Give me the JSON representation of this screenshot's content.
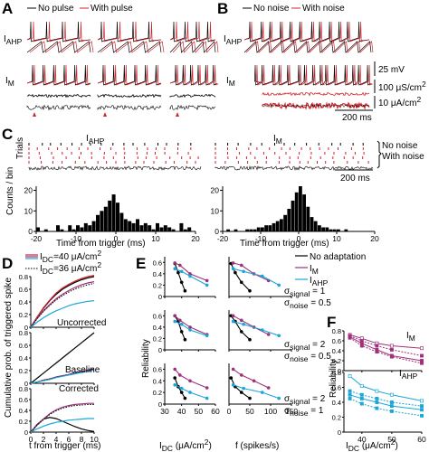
{
  "colors": {
    "red": "#d2232a",
    "magenta": "#a0307a",
    "cyan": "#1ba6d8",
    "blue": "#3a3aa8",
    "black": "#000000"
  },
  "panelA": {
    "label": "A",
    "legend_black": "No pulse",
    "legend_red": "With pulse",
    "row1_label": "I",
    "row1_sub": "AHP",
    "row2_label": "I",
    "row2_sub": "M"
  },
  "panelB": {
    "label": "B",
    "legend_black": "No noise",
    "legend_red": "With noise",
    "row1_label": "I",
    "row1_sub": "AHP",
    "row2_label": "I",
    "row2_sub": "M",
    "scale_mv": "25 mV",
    "scale_cond": "100 μS/cm",
    "scale_cond_sup": "2",
    "scale_cur": "10 μA/cm",
    "scale_cur_sup": "2",
    "scale_time": "200 ms"
  },
  "panelC": {
    "label": "C",
    "trials": "Trials",
    "counts": "Counts / bin",
    "left_title": "I",
    "left_sub": "AHP",
    "right_title": "I",
    "right_sub": "M",
    "no_noise": "No noise",
    "with_noise": "With noise",
    "scale_time": "200 ms",
    "xlabel": "Time from trigger (ms)",
    "left_xticks": [
      "-20",
      "-10",
      "0",
      "10",
      "20"
    ],
    "right_xticks": [
      "-20",
      "-10",
      "0",
      "10",
      "20"
    ],
    "left_yticks": [
      "0",
      "10",
      "20"
    ],
    "right_yticks": [
      "0",
      "10",
      "20"
    ]
  },
  "panelD": {
    "label": "D",
    "ylabel": "Cumulative prob. of triggered spike",
    "legend1": "I",
    "legend1_sub": "DC",
    "legend1_val": "=40 μA/cm",
    "legend1_sup": "2",
    "legend2": "I",
    "legend2_sub": "DC",
    "legend2_val": "=36 μA/cm",
    "legend2_sup": "2",
    "sub1": "Uncorrected",
    "sub2": "Baseline",
    "sub3": "Corrected",
    "xlabel": "t from trigger (ms)",
    "xticks": [
      "0",
      "2",
      "4",
      "6",
      "8",
      "10"
    ],
    "yticks_top": [
      "0",
      "0.2",
      "0.4",
      "0.6",
      "0.8"
    ],
    "yticks_mid": [
      "0",
      "0.2",
      "0.4",
      "0.6",
      "0.8"
    ],
    "yticks_bot": [
      "0",
      "0.2",
      "0.4",
      "0.6",
      "0.8"
    ]
  },
  "panelE": {
    "label": "E",
    "ylabel": "Reliability",
    "xlabel_left": "I",
    "xlabel_left_sub": "DC",
    "xlabel_left_unit": " (μA/cm",
    "xlabel_left_sup": "2",
    "xlabel_left_end": ")",
    "xlabel_right": "f (spikes/s)",
    "xticks_left": [
      "30",
      "40",
      "50",
      "60"
    ],
    "xticks_right": [
      "0",
      "50",
      "100",
      "150"
    ],
    "yticks": [
      "0",
      "0.2",
      "0.4",
      "0.6"
    ],
    "legend_none": "No adaptation",
    "legend_m": "I",
    "legend_m_sub": "M",
    "legend_ahp": "I",
    "legend_ahp_sub": "AHP",
    "rows": [
      {
        "sig_signal": "σ",
        "sig_signal_sub": "signal",
        "sig_signal_val": " = 1",
        "sig_noise": "σ",
        "sig_noise_sub": "noise",
        "sig_noise_val": " = 0.5"
      },
      {
        "sig_signal": "σ",
        "sig_signal_sub": "signal",
        "sig_signal_val": " = 2",
        "sig_noise": "σ",
        "sig_noise_sub": "noise",
        "sig_noise_val": " = 0.5"
      },
      {
        "sig_signal": "σ",
        "sig_signal_sub": "signal",
        "sig_signal_val": " = 2",
        "sig_noise": "σ",
        "sig_noise_sub": "noise",
        "sig_noise_val": " = 1"
      }
    ]
  },
  "panelF": {
    "label": "F",
    "ylabel": "Reliability",
    "top_title": "I",
    "top_sub": "M",
    "bot_title": "I",
    "bot_sub": "AHP",
    "xlabel": "I",
    "xlabel_sub": "DC",
    "xlabel_unit": " (μA/cm",
    "xlabel_sup": "2",
    "xlabel_end": ")",
    "xticks": [
      "40",
      "50",
      "60"
    ],
    "yticks": [
      "0",
      "0.2",
      "0.4",
      "0.6",
      "0.8"
    ]
  },
  "chart_data": [
    {
      "type": "bar",
      "panel": "C-left",
      "x": [
        -20,
        -19,
        -18,
        -17,
        -16,
        -15,
        -14,
        -13,
        -12,
        -11,
        -10,
        -9,
        -8,
        -7,
        -6,
        -5,
        -4,
        -3,
        -2,
        -1,
        0,
        1,
        2,
        3,
        4,
        5,
        6,
        7,
        8,
        9,
        10,
        11,
        12,
        13,
        14,
        15,
        16,
        17,
        18,
        19
      ],
      "values": [
        2,
        0,
        1,
        0,
        0,
        3,
        1,
        0,
        3,
        1,
        3,
        2,
        4,
        3,
        5,
        8,
        10,
        12,
        15,
        18,
        14,
        9,
        6,
        5,
        4,
        6,
        3,
        4,
        3,
        1,
        4,
        2,
        3,
        2,
        1,
        0,
        4,
        1,
        2,
        0
      ],
      "xlabel": "Time from trigger (ms)",
      "ylabel": "Counts / bin",
      "xlim": [
        -20,
        20
      ],
      "ylim": [
        0,
        22
      ]
    },
    {
      "type": "bar",
      "panel": "C-right",
      "x": [
        -20,
        -19,
        -18,
        -17,
        -16,
        -15,
        -14,
        -13,
        -12,
        -11,
        -10,
        -9,
        -8,
        -7,
        -6,
        -5,
        -4,
        -3,
        -2,
        -1,
        0,
        1,
        2,
        3,
        4,
        5,
        6,
        7,
        8,
        9,
        10,
        11,
        12,
        13,
        14,
        15,
        16,
        17,
        18,
        19
      ],
      "values": [
        0,
        1,
        0,
        1,
        0,
        0,
        1,
        1,
        1,
        2,
        2,
        3,
        3,
        4,
        5,
        6,
        8,
        11,
        15,
        19,
        22,
        18,
        12,
        7,
        5,
        3,
        2,
        2,
        1,
        1,
        1,
        0,
        1,
        0,
        0,
        0,
        0,
        0,
        0,
        0
      ],
      "xlabel": "Time from trigger (ms)",
      "ylabel": "Counts / bin",
      "xlim": [
        -20,
        20
      ],
      "ylim": [
        0,
        22
      ]
    },
    {
      "type": "line",
      "panel": "D-uncorrected",
      "x": [
        0,
        1,
        2,
        3,
        4,
        5,
        6,
        7,
        8,
        9,
        10
      ],
      "series": [
        {
          "color": "#000000",
          "values": [
            0,
            0.16,
            0.3,
            0.42,
            0.52,
            0.6,
            0.66,
            0.71,
            0.75,
            0.78,
            0.8
          ]
        },
        {
          "color": "#d2232a",
          "values": [
            0,
            0.16,
            0.31,
            0.43,
            0.54,
            0.62,
            0.68,
            0.73,
            0.77,
            0.8,
            0.82
          ]
        },
        {
          "color": "#a0307a",
          "values": [
            0,
            0.14,
            0.26,
            0.36,
            0.45,
            0.52,
            0.58,
            0.63,
            0.67,
            0.7,
            0.72
          ]
        },
        {
          "color": "#1ba6d8",
          "values": [
            0,
            0.08,
            0.15,
            0.21,
            0.26,
            0.3,
            0.34,
            0.37,
            0.39,
            0.41,
            0.42
          ]
        }
      ],
      "xlim": [
        0,
        10
      ],
      "ylim": [
        0,
        0.8
      ]
    },
    {
      "type": "line",
      "panel": "D-baseline",
      "x": [
        0,
        1,
        2,
        3,
        4,
        5,
        6,
        7,
        8,
        9,
        10
      ],
      "series": [
        {
          "color": "#000000",
          "values": [
            0,
            0.08,
            0.16,
            0.24,
            0.32,
            0.4,
            0.48,
            0.56,
            0.64,
            0.72,
            0.8
          ]
        },
        {
          "color": "#a0307a",
          "values": [
            0,
            0.02,
            0.05,
            0.07,
            0.1,
            0.12,
            0.14,
            0.17,
            0.19,
            0.21,
            0.23
          ]
        },
        {
          "color": "#1ba6d8",
          "values": [
            0,
            0.02,
            0.04,
            0.06,
            0.09,
            0.11,
            0.13,
            0.15,
            0.17,
            0.19,
            0.21
          ]
        }
      ],
      "xlim": [
        0,
        10
      ],
      "ylim": [
        0,
        0.8
      ]
    },
    {
      "type": "line",
      "panel": "D-corrected",
      "x": [
        0,
        1,
        2,
        3,
        4,
        5,
        6,
        7,
        8,
        9,
        10
      ],
      "series": [
        {
          "color": "#000000",
          "values": [
            0,
            0.14,
            0.24,
            0.27,
            0.25,
            0.2,
            0.15,
            0.1,
            0.06,
            0.03,
            0.01
          ]
        },
        {
          "color": "#a0307a",
          "values": [
            0,
            0.13,
            0.24,
            0.34,
            0.41,
            0.46,
            0.49,
            0.51,
            0.52,
            0.53,
            0.53
          ]
        },
        {
          "color": "#1ba6d8",
          "values": [
            0,
            0.06,
            0.11,
            0.15,
            0.18,
            0.2,
            0.22,
            0.23,
            0.24,
            0.25,
            0.25
          ]
        }
      ],
      "xlim": [
        0,
        10
      ],
      "ylim": [
        0,
        0.8
      ]
    },
    {
      "type": "line",
      "panel": "E-row1-left",
      "xlim": [
        30,
        60
      ],
      "ylim": [
        0,
        0.7
      ],
      "series": [
        {
          "color": "#000000",
          "x": [
            36,
            38,
            40,
            42
          ],
          "values": [
            0.58,
            0.42,
            0.25,
            0.1
          ]
        },
        {
          "color": "#a0307a",
          "x": [
            36,
            39,
            45,
            55
          ],
          "values": [
            0.59,
            0.55,
            0.4,
            0.28
          ]
        },
        {
          "color": "#1ba6d8",
          "x": [
            36,
            40,
            45,
            55
          ],
          "values": [
            0.49,
            0.44,
            0.36,
            0.2
          ]
        }
      ]
    },
    {
      "type": "line",
      "panel": "E-row1-right",
      "xlim": [
        0,
        150
      ],
      "ylim": [
        0,
        0.7
      ],
      "series": [
        {
          "color": "#000000",
          "x": [
            5,
            15,
            30,
            50
          ],
          "values": [
            0.58,
            0.42,
            0.25,
            0.1
          ]
        },
        {
          "color": "#a0307a",
          "x": [
            10,
            30,
            60,
            95
          ],
          "values": [
            0.59,
            0.55,
            0.4,
            0.28
          ]
        },
        {
          "color": "#1ba6d8",
          "x": [
            10,
            35,
            80,
            120
          ],
          "values": [
            0.49,
            0.44,
            0.36,
            0.2
          ]
        }
      ]
    },
    {
      "type": "line",
      "panel": "E-row2-left",
      "xlim": [
        30,
        60
      ],
      "ylim": [
        0,
        0.7
      ],
      "series": [
        {
          "color": "#000000",
          "x": [
            36,
            38,
            40,
            42
          ],
          "values": [
            0.6,
            0.5,
            0.32,
            0.18
          ]
        },
        {
          "color": "#a0307a",
          "x": [
            36,
            39,
            45,
            55
          ],
          "values": [
            0.6,
            0.52,
            0.4,
            0.27
          ]
        },
        {
          "color": "#1ba6d8",
          "x": [
            36,
            40,
            45,
            55
          ],
          "values": [
            0.5,
            0.45,
            0.35,
            0.25
          ]
        }
      ]
    },
    {
      "type": "line",
      "panel": "E-row2-right",
      "xlim": [
        0,
        150
      ],
      "ylim": [
        0,
        0.7
      ],
      "series": [
        {
          "color": "#000000",
          "x": [
            5,
            15,
            30,
            50
          ],
          "values": [
            0.6,
            0.5,
            0.32,
            0.18
          ]
        },
        {
          "color": "#a0307a",
          "x": [
            10,
            30,
            60,
            95
          ],
          "values": [
            0.6,
            0.52,
            0.4,
            0.27
          ]
        },
        {
          "color": "#1ba6d8",
          "x": [
            10,
            35,
            80,
            120
          ],
          "values": [
            0.5,
            0.45,
            0.35,
            0.25
          ]
        }
      ]
    },
    {
      "type": "line",
      "panel": "E-row3-left",
      "xlim": [
        30,
        60
      ],
      "ylim": [
        0,
        0.7
      ],
      "series": [
        {
          "color": "#000000",
          "x": [
            36,
            38,
            40,
            42
          ],
          "values": [
            0.45,
            0.3,
            0.2,
            0.1
          ]
        },
        {
          "color": "#a0307a",
          "x": [
            36,
            39,
            45,
            55
          ],
          "values": [
            0.6,
            0.5,
            0.4,
            0.28
          ]
        },
        {
          "color": "#1ba6d8",
          "x": [
            36,
            40,
            45,
            55
          ],
          "values": [
            0.33,
            0.27,
            0.2,
            0.1
          ]
        }
      ]
    },
    {
      "type": "line",
      "panel": "E-row3-right",
      "xlim": [
        0,
        150
      ],
      "ylim": [
        0,
        0.7
      ],
      "series": [
        {
          "color": "#000000",
          "x": [
            5,
            15,
            30,
            50
          ],
          "values": [
            0.45,
            0.3,
            0.2,
            0.1
          ]
        },
        {
          "color": "#a0307a",
          "x": [
            10,
            30,
            60,
            95
          ],
          "values": [
            0.6,
            0.5,
            0.4,
            0.28
          ]
        },
        {
          "color": "#1ba6d8",
          "x": [
            10,
            35,
            80,
            120
          ],
          "values": [
            0.33,
            0.27,
            0.2,
            0.1
          ]
        }
      ]
    },
    {
      "type": "line",
      "panel": "F-top",
      "x": [
        36,
        40,
        45,
        50,
        60
      ],
      "xlim": [
        34,
        60
      ],
      "ylim": [
        0,
        0.8
      ],
      "series": [
        {
          "color": "#a0307a",
          "values": [
            0.72,
            0.65,
            0.55,
            0.5,
            0.45
          ]
        },
        {
          "color": "#a0307a",
          "values": [
            0.7,
            0.6,
            0.5,
            0.42,
            0.3
          ]
        },
        {
          "color": "#a0307a",
          "values": [
            0.68,
            0.55,
            0.42,
            0.3,
            0.2
          ]
        },
        {
          "color": "#a0307a",
          "values": [
            0.66,
            0.5,
            0.38,
            0.28,
            0.15
          ]
        }
      ]
    },
    {
      "type": "line",
      "panel": "F-bottom",
      "x": [
        36,
        40,
        45,
        50,
        60
      ],
      "xlim": [
        34,
        60
      ],
      "ylim": [
        0,
        0.8
      ],
      "series": [
        {
          "color": "#1ba6d8",
          "values": [
            0.75,
            0.62,
            0.55,
            0.5,
            0.42
          ]
        },
        {
          "color": "#1ba6d8",
          "values": [
            0.55,
            0.5,
            0.45,
            0.4,
            0.35
          ]
        },
        {
          "color": "#1ba6d8",
          "values": [
            0.5,
            0.45,
            0.4,
            0.35,
            0.3
          ]
        },
        {
          "color": "#1ba6d8",
          "values": [
            0.45,
            0.38,
            0.32,
            0.28,
            0.22
          ]
        }
      ]
    }
  ]
}
